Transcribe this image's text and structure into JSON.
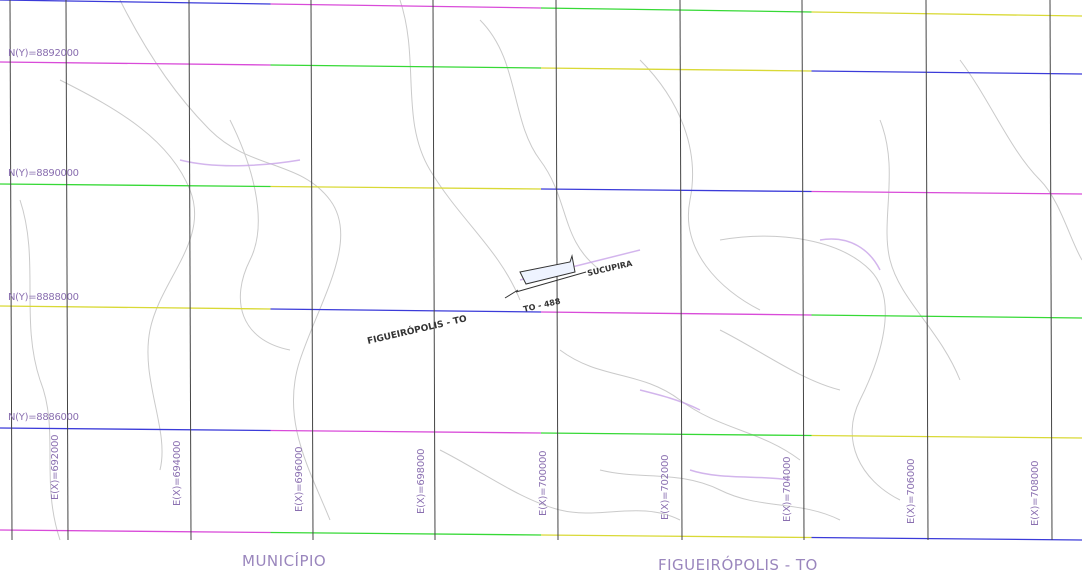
{
  "map": {
    "northing_labels": [
      "N(Y)=8892000",
      "N(Y)=8890000",
      "N(Y)=8888000",
      "N(Y)=8886000"
    ],
    "easting_labels": [
      "E(X)=692000",
      "E(X)=694000",
      "E(X)=696000",
      "E(X)=698000",
      "E(X)=700000",
      "E(X)=702000",
      "E(X)=704000",
      "E(X)=706000",
      "E(X)=708000"
    ],
    "road_label_left": "FIGUEIRÓPOLIS - TO",
    "road_label_center": "TO - 488",
    "road_label_right": "SUCUPIRA",
    "grid_colors": [
      "#3b3bd9",
      "#d94bd9",
      "#36d936",
      "#d9d936"
    ],
    "road_colors": "#c8a3e8"
  },
  "footer": {
    "municipio_label": "MUNICÍPIO",
    "place_label": "FIGUEIRÓPOLIS - TO"
  }
}
